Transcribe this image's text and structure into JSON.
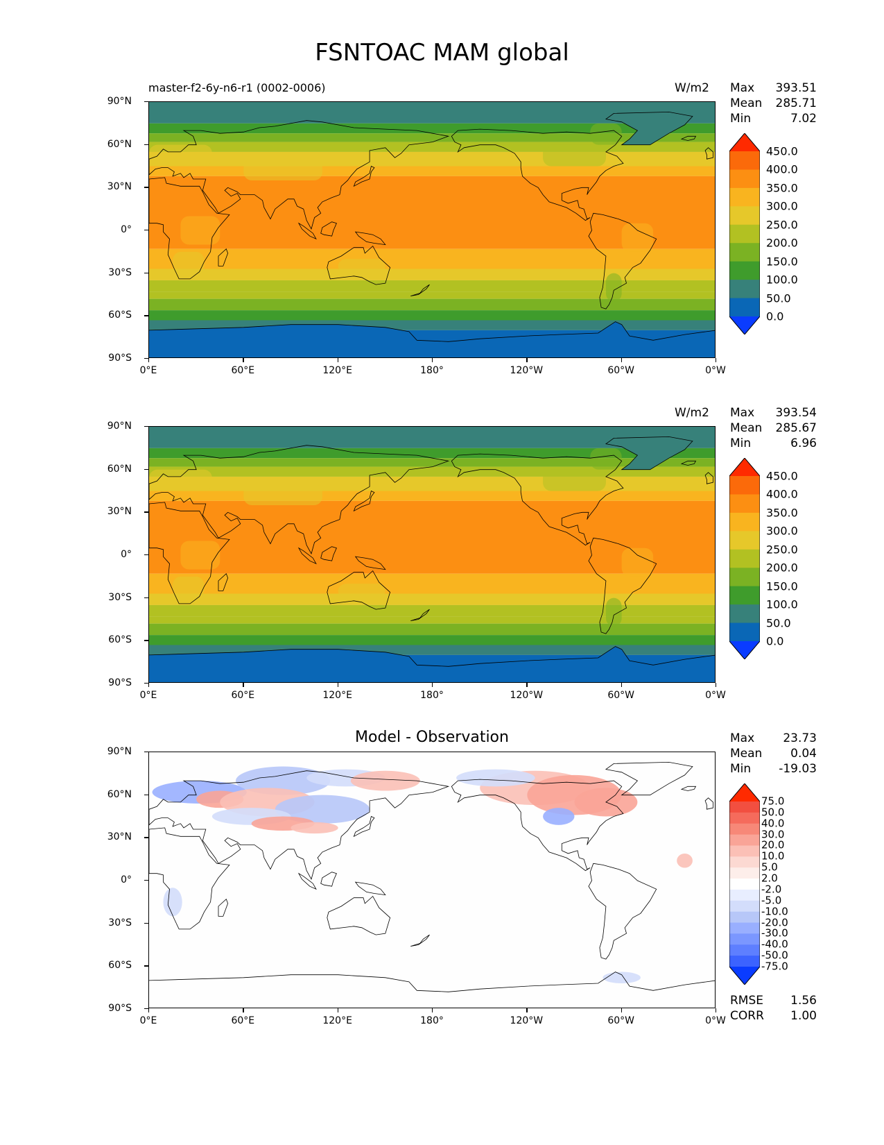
{
  "title": "FSNTOAC MAM global",
  "lat_ticks": [
    "90°N",
    "60°N",
    "30°N",
    "0°",
    "30°S",
    "60°S",
    "90°S"
  ],
  "lon_ticks": [
    "0°E",
    "60°E",
    "120°E",
    "180°",
    "120°W",
    "60°W",
    "0°W"
  ],
  "panels": [
    {
      "top_label": "master-f2-6y-n6-r1 (0002-0006)",
      "units": "W/m2",
      "stats": {
        "max_label": "Max",
        "max": "393.51",
        "mean_label": "Mean",
        "mean": "285.71",
        "min_label": "Min",
        "min": "7.02"
      },
      "colorbar": {
        "levels": [
          "450.0",
          "400.0",
          "350.0",
          "300.0",
          "250.0",
          "200.0",
          "150.0",
          "100.0",
          "50.0",
          "0.0"
        ],
        "colors": [
          "#ff2a00",
          "#fb6a0a",
          "#fc8f12",
          "#f9b41f",
          "#e6c82a",
          "#b2c122",
          "#7bb223",
          "#3f9c2c",
          "#37817a",
          "#0a67b6",
          "#0a3cff"
        ]
      }
    },
    {
      "top_label": "",
      "units": "W/m2",
      "stats": {
        "max_label": "Max",
        "max": "393.54",
        "mean_label": "Mean",
        "mean": "285.67",
        "min_label": "Min",
        "min": "6.96"
      },
      "colorbar": {
        "levels": [
          "450.0",
          "400.0",
          "350.0",
          "300.0",
          "250.0",
          "200.0",
          "150.0",
          "100.0",
          "50.0",
          "0.0"
        ],
        "colors": [
          "#ff2a00",
          "#fb6a0a",
          "#fc8f12",
          "#f9b41f",
          "#e6c82a",
          "#b2c122",
          "#7bb223",
          "#3f9c2c",
          "#37817a",
          "#0a67b6",
          "#0a3cff"
        ]
      }
    },
    {
      "center_title": "Model - Observation",
      "stats": {
        "max_label": "Max",
        "max": "23.73",
        "mean_label": "Mean",
        "mean": "0.04",
        "min_label": "Min",
        "min": "-19.03"
      },
      "colorbar": {
        "levels": [
          "75.0",
          "50.0",
          "40.0",
          "30.0",
          "20.0",
          "10.0",
          "5.0",
          "2.0",
          "-2.0",
          "-5.0",
          "-10.0",
          "-20.0",
          "-30.0",
          "-40.0",
          "-50.0",
          "-75.0"
        ],
        "colors": [
          "#ff2a00",
          "#f24f40",
          "#f56b5c",
          "#f78878",
          "#f9a497",
          "#fbc0b6",
          "#fcd9d2",
          "#fdeeea",
          "#ffffff",
          "#e8eeff",
          "#d3ddfb",
          "#b7c7f8",
          "#99afff",
          "#7b97ff",
          "#5e7fff",
          "#3c63ff",
          "#0a3cff"
        ]
      },
      "rmse_label": "RMSE",
      "rmse": "1.56",
      "corr_label": "CORR",
      "corr": "1.00"
    }
  ],
  "chart_data": [
    {
      "type": "heatmap",
      "title": "FSNTOAC MAM global",
      "subtitle": "master-f2-6y-n6-r1 (0002-0006)",
      "units": "W/m2",
      "x_range": [
        0,
        360
      ],
      "y_range": [
        -90,
        90
      ],
      "zonal_band_values": [
        {
          "lat": [
            75,
            90
          ],
          "value": 80
        },
        {
          "lat": [
            68,
            75
          ],
          "value": 110
        },
        {
          "lat": [
            62,
            68
          ],
          "value": 170
        },
        {
          "lat": [
            55,
            62
          ],
          "value": 230
        },
        {
          "lat": [
            45,
            55
          ],
          "value": 270
        },
        {
          "lat": [
            38,
            45
          ],
          "value": 320
        },
        {
          "lat": [
            -13,
            38
          ],
          "value": 370
        },
        {
          "lat": [
            -27,
            -13
          ],
          "value": 330
        },
        {
          "lat": [
            -35,
            -27
          ],
          "value": 280
        },
        {
          "lat": [
            -43,
            -35
          ],
          "value": 230
        },
        {
          "lat": [
            -48,
            -43
          ],
          "value": 200
        },
        {
          "lat": [
            -56,
            -48
          ],
          "value": 160
        },
        {
          "lat": [
            -63,
            -56
          ],
          "value": 120
        },
        {
          "lat": [
            -70,
            -63
          ],
          "value": 80
        },
        {
          "lat": [
            -90,
            -70
          ],
          "value": 30
        }
      ],
      "stats": {
        "max": 393.51,
        "mean": 285.71,
        "min": 7.02
      }
    },
    {
      "type": "heatmap",
      "units": "W/m2",
      "x_range": [
        0,
        360
      ],
      "y_range": [
        -90,
        90
      ],
      "stats": {
        "max": 393.54,
        "mean": 285.67,
        "min": 6.96
      }
    },
    {
      "type": "heatmap",
      "title": "Model - Observation",
      "x_range": [
        0,
        360
      ],
      "y_range": [
        -90,
        90
      ],
      "stats": {
        "max": 23.73,
        "mean": 0.04,
        "min": -19.03,
        "rmse": 1.56,
        "corr": 1.0
      }
    }
  ]
}
